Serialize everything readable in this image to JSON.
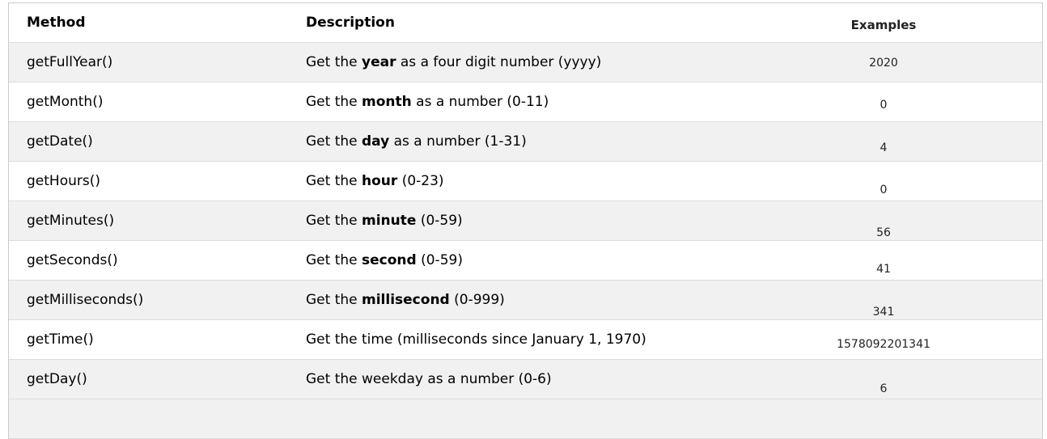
{
  "headers": {
    "method": "Method",
    "description": "Description",
    "examples": "Examples"
  },
  "rows": [
    {
      "method": "getFullYear()",
      "pre": "Get the ",
      "bold": "year",
      "post": " as a four digit number (yyyy)",
      "example": "2020"
    },
    {
      "method": "getMonth()",
      "pre": "Get the ",
      "bold": "month",
      "post": " as a number (0-11)",
      "example": "0"
    },
    {
      "method": "getDate()",
      "pre": "Get the ",
      "bold": "day",
      "post": " as a number (1-31)",
      "example": "4"
    },
    {
      "method": "getHours()",
      "pre": "Get the ",
      "bold": "hour",
      "post": " (0-23)",
      "example": "0"
    },
    {
      "method": "getMinutes()",
      "pre": "Get the ",
      "bold": "minute",
      "post": " (0-59)",
      "example": "56"
    },
    {
      "method": "getSeconds()",
      "pre": "Get the ",
      "bold": "second",
      "post": " (0-59)",
      "example": "41"
    },
    {
      "method": "getMilliseconds()",
      "pre": "Get the ",
      "bold": "millisecond",
      "post": " (0-999)",
      "example": "341"
    },
    {
      "method": "getTime()",
      "pre": "Get the time (milliseconds since January 1, 1970)",
      "bold": "",
      "post": "",
      "example": "1578092201341"
    },
    {
      "method": "getDay()",
      "pre": "Get the weekday as a number (0-6)",
      "bold": "",
      "post": "",
      "example": "6"
    }
  ]
}
